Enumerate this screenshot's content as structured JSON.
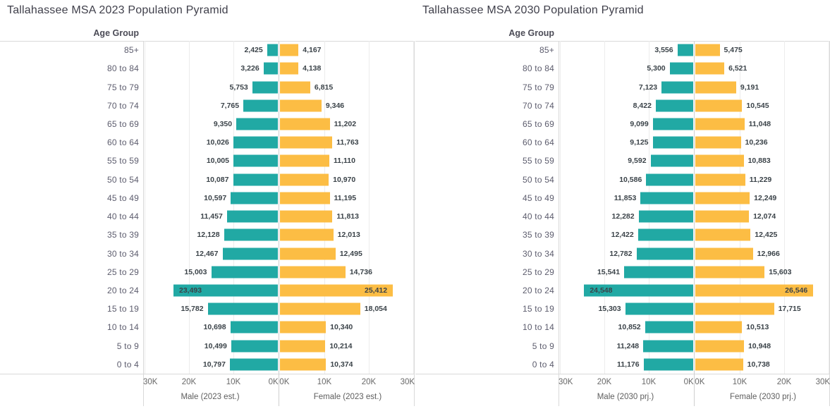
{
  "page": {
    "background": "#ffffff"
  },
  "colors": {
    "male_bar": "#21a9a4",
    "female_bar": "#fcbd44",
    "title_text": "#3f3f4a",
    "age_label_text": "#5c5c6d",
    "data_label_text": "#3b4349",
    "axis_text": "#686868",
    "panel_border": "#d9d9d9",
    "gridline": "#ececec"
  },
  "charts": [
    {
      "title": "Tallahassee MSA 2023 Population Pyramid",
      "age_axis_label": "Age Group",
      "male_axis_title": "Male (2023 est.)",
      "female_axis_title": "Female (2023 est.)",
      "male_ticks": [
        "30K",
        "20K",
        "10K",
        "0K"
      ],
      "female_ticks": [
        "0K",
        "10K",
        "20K",
        "30K"
      ]
    },
    {
      "title": "Tallahassee MSA 2030 Population Pyramid",
      "age_axis_label": "Age Group",
      "male_axis_title": "Male (2030 prj.)",
      "female_axis_title": "Female (2030 prj.)",
      "male_ticks": [
        "30K",
        "20K",
        "10K",
        "0K"
      ],
      "female_ticks": [
        "0K",
        "10K",
        "20K",
        "30K"
      ]
    }
  ],
  "chart_data": [
    {
      "type": "bar",
      "subtype": "population_pyramid",
      "title": "Tallahassee MSA 2023 Population Pyramid",
      "ylabel": "Age Group",
      "xlabel_left": "Male (2023 est.)",
      "xlabel_right": "Female (2023 est.)",
      "xlim": [
        0,
        30000
      ],
      "x_tick_interval": 10000,
      "x_tick_format": "K",
      "grid": true,
      "categories": [
        "85+",
        "80 to 84",
        "75 to 79",
        "70 to 74",
        "65 to 69",
        "60 to 64",
        "55 to 59",
        "50 to 54",
        "45 to 49",
        "40 to 44",
        "35 to 39",
        "30 to 34",
        "25 to 29",
        "20 to 24",
        "15 to 19",
        "10 to 14",
        "5 to 9",
        "0 to 4"
      ],
      "series": [
        {
          "name": "Male (2023 est.)",
          "color": "#21a9a4",
          "values": [
            2425,
            3226,
            5753,
            7765,
            9350,
            10026,
            10005,
            10087,
            10597,
            11457,
            12128,
            12467,
            15003,
            23493,
            15782,
            10698,
            10499,
            10797
          ]
        },
        {
          "name": "Female (2023 est.)",
          "color": "#fcbd44",
          "values": [
            4167,
            4138,
            6815,
            9346,
            11202,
            11763,
            11110,
            10970,
            11195,
            11813,
            12013,
            12495,
            14736,
            25412,
            18054,
            10340,
            10214,
            10374
          ]
        }
      ]
    },
    {
      "type": "bar",
      "subtype": "population_pyramid",
      "title": "Tallahassee MSA 2030 Population Pyramid",
      "ylabel": "Age Group",
      "xlabel_left": "Male (2030 prj.)",
      "xlabel_right": "Female (2030 prj.)",
      "xlim": [
        0,
        30000
      ],
      "x_tick_interval": 10000,
      "x_tick_format": "K",
      "grid": true,
      "categories": [
        "85+",
        "80 to 84",
        "75 to 79",
        "70 to 74",
        "65 to 69",
        "60 to 64",
        "55 to 59",
        "50 to 54",
        "45 to 49",
        "40 to 44",
        "35 to 39",
        "30 to 34",
        "25 to 29",
        "20 to 24",
        "15 to 19",
        "10 to 14",
        "5 to 9",
        "0 to 4"
      ],
      "series": [
        {
          "name": "Male (2030 prj.)",
          "color": "#21a9a4",
          "values": [
            3556,
            5300,
            7123,
            8422,
            9099,
            9125,
            9592,
            10586,
            11853,
            12282,
            12422,
            12782,
            15541,
            24548,
            15303,
            10852,
            11248,
            11176
          ]
        },
        {
          "name": "Female (2030 prj.)",
          "color": "#fcbd44",
          "values": [
            5475,
            6521,
            9191,
            10545,
            11048,
            10236,
            10883,
            11229,
            12249,
            12074,
            12425,
            12966,
            15603,
            26546,
            17715,
            10513,
            10948,
            10738
          ]
        }
      ]
    }
  ]
}
